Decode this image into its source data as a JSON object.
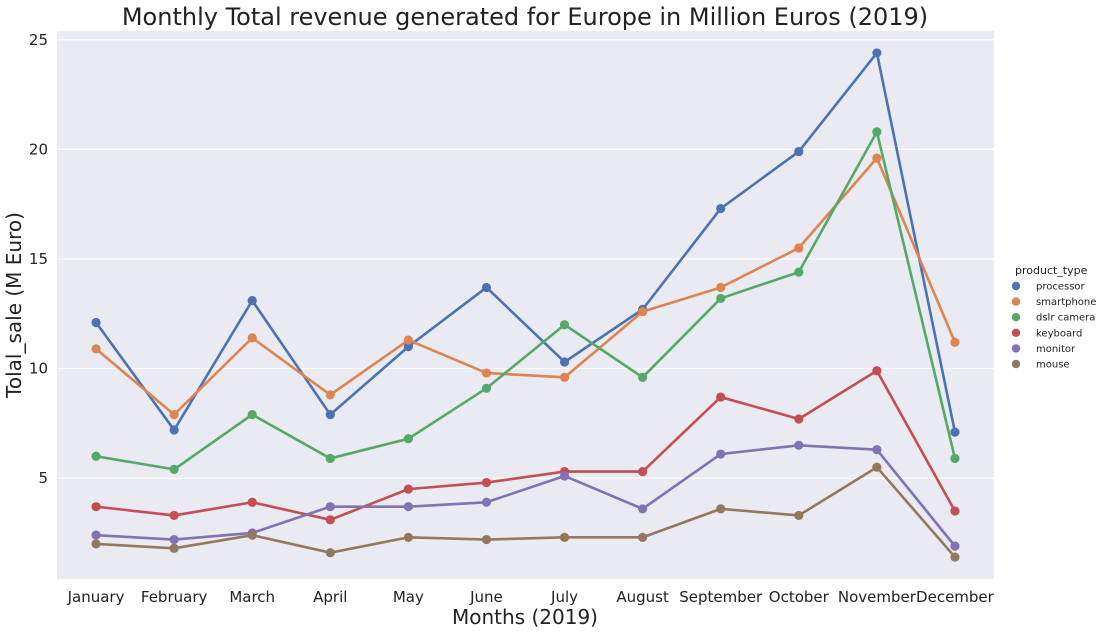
{
  "chart_data": {
    "type": "line",
    "title": "Monthly Total revenue generated for Europe in Million Euros (2019)",
    "xlabel": "Months (2019)",
    "ylabel": "Tolal_sale (M Euro)",
    "categories": [
      "January",
      "February",
      "March",
      "April",
      "May",
      "June",
      "July",
      "August",
      "September",
      "October",
      "November",
      "December"
    ],
    "ylim": [
      0.4,
      25.4
    ],
    "yticks": [
      5,
      10,
      15,
      20,
      25
    ],
    "grid": true,
    "legend": {
      "title": "product_type",
      "position": "right"
    },
    "series": [
      {
        "name": "processor",
        "color": "#4c72b0",
        "values": [
          12.1,
          7.2,
          13.1,
          7.9,
          11.0,
          13.7,
          10.3,
          12.7,
          17.3,
          19.9,
          24.4,
          7.1
        ]
      },
      {
        "name": "smartphone",
        "color": "#dd8452",
        "values": [
          10.9,
          7.9,
          11.4,
          8.8,
          11.3,
          9.8,
          9.6,
          12.6,
          13.7,
          15.5,
          19.6,
          11.2
        ]
      },
      {
        "name": "dslr camera",
        "color": "#55a868",
        "values": [
          6.0,
          5.4,
          7.9,
          5.9,
          6.8,
          9.1,
          12.0,
          9.6,
          13.2,
          14.4,
          20.8,
          5.9
        ]
      },
      {
        "name": "keyboard",
        "color": "#c44e52",
        "values": [
          3.7,
          3.3,
          3.9,
          3.1,
          4.5,
          4.8,
          5.3,
          5.3,
          8.7,
          7.7,
          9.9,
          3.5
        ]
      },
      {
        "name": "monitor",
        "color": "#8172b3",
        "values": [
          2.4,
          2.2,
          2.5,
          3.7,
          3.7,
          3.9,
          5.1,
          3.6,
          6.1,
          6.5,
          6.3,
          1.9
        ]
      },
      {
        "name": "mouse",
        "color": "#937860",
        "values": [
          2.0,
          1.8,
          2.4,
          1.6,
          2.3,
          2.2,
          2.3,
          2.3,
          3.6,
          3.3,
          5.5,
          1.4
        ]
      }
    ]
  }
}
